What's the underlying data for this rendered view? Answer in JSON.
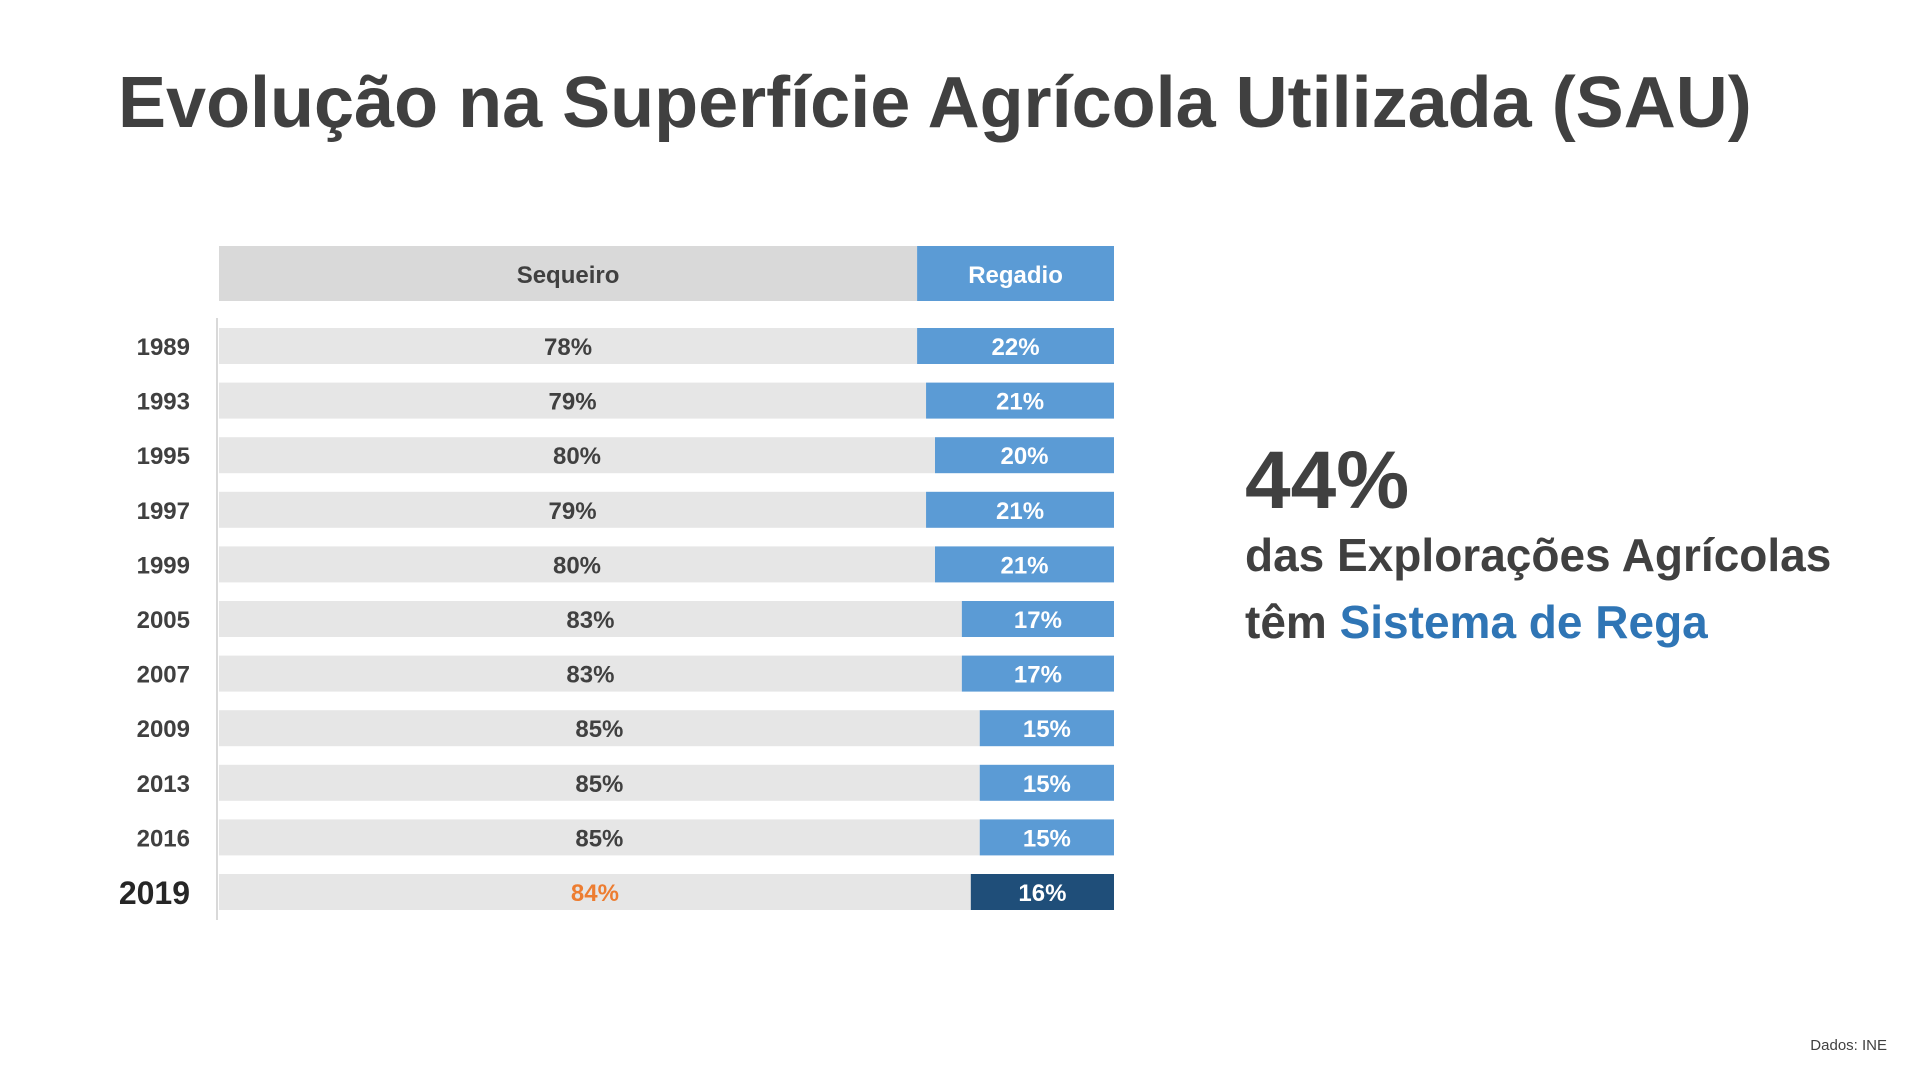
{
  "title": "Evolução na Superfície Agrícola Utilizada (SAU)",
  "chart_data": {
    "type": "bar",
    "stacked": true,
    "orientation": "horizontal",
    "unit": "%",
    "categories": [
      "1989",
      "1993",
      "1995",
      "1997",
      "1999",
      "2005",
      "2007",
      "2009",
      "2013",
      "2016",
      "2019"
    ],
    "highlight_category": "2019",
    "series": [
      {
        "name": "Sequeiro",
        "values": [
          78,
          79,
          80,
          79,
          80,
          83,
          83,
          85,
          85,
          85,
          84
        ],
        "color": "#e6e6e6",
        "label_color": "#404040",
        "highlight_label_color": "#ed7d31"
      },
      {
        "name": "Regadio",
        "values": [
          22,
          21,
          20,
          21,
          21,
          17,
          17,
          15,
          15,
          15,
          16
        ],
        "color": "#5b9bd5",
        "label_color": "#ffffff",
        "highlight_color": "#1f4e79"
      }
    ],
    "xlim": [
      0,
      100
    ],
    "grid": false
  },
  "callout": {
    "value": "44%",
    "line1": "das Explorações Agrícolas",
    "line2_prefix": "têm ",
    "line2_accent": "Sistema de Rega",
    "accent_color": "#2f75b5"
  },
  "source": "Dados: INE"
}
